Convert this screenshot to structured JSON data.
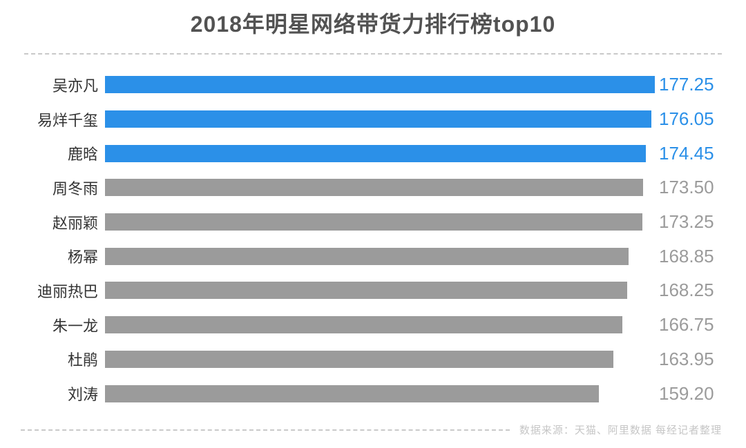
{
  "title": "2018年明星网络带货力排行榜top10",
  "source_note": "数据来源：天猫、阿里数据 每经记者整理",
  "colors": {
    "highlight_bar": "#2b90e8",
    "default_bar": "#9b9b9b",
    "highlight_value_text": "#2b90e8",
    "default_value_text": "#9b9b9b",
    "title_text": "#525252",
    "category_text": "#333333",
    "source_text": "#c6c6c6",
    "dashed_line": "#c9c9c9",
    "background": "#ffffff"
  },
  "chart_data": {
    "type": "bar",
    "orientation": "horizontal",
    "title": "2018年明星网络带货力排行榜top10",
    "xlabel": "",
    "ylabel": "",
    "xlim": [
      0,
      177.25
    ],
    "grid": false,
    "axis_visible": false,
    "value_labels_shown": true,
    "legend": "none",
    "highlight_note": "top 3 bars and their value labels are blue, remaining bars gray",
    "rows": [
      {
        "rank": 1,
        "name": "吴亦凡",
        "value": 177.25,
        "label": "177.25",
        "highlighted": true
      },
      {
        "rank": 2,
        "name": "易烊千玺",
        "value": 176.05,
        "label": "176.05",
        "highlighted": true
      },
      {
        "rank": 3,
        "name": "鹿晗",
        "value": 174.45,
        "label": "174.45",
        "highlighted": true
      },
      {
        "rank": 4,
        "name": "周冬雨",
        "value": 173.5,
        "label": "173.50",
        "highlighted": false
      },
      {
        "rank": 5,
        "name": "赵丽颖",
        "value": 173.25,
        "label": "173.25",
        "highlighted": false
      },
      {
        "rank": 6,
        "name": "杨幂",
        "value": 168.85,
        "label": "168.85",
        "highlighted": false
      },
      {
        "rank": 7,
        "name": "迪丽热巴",
        "value": 168.25,
        "label": "168.25",
        "highlighted": false
      },
      {
        "rank": 8,
        "name": "朱一龙",
        "value": 166.75,
        "label": "166.75",
        "highlighted": false
      },
      {
        "rank": 9,
        "name": "杜鹃",
        "value": 163.95,
        "label": "163.95",
        "highlighted": false
      },
      {
        "rank": 10,
        "name": "刘涛",
        "value": 159.2,
        "label": "159.20",
        "highlighted": false
      }
    ]
  }
}
